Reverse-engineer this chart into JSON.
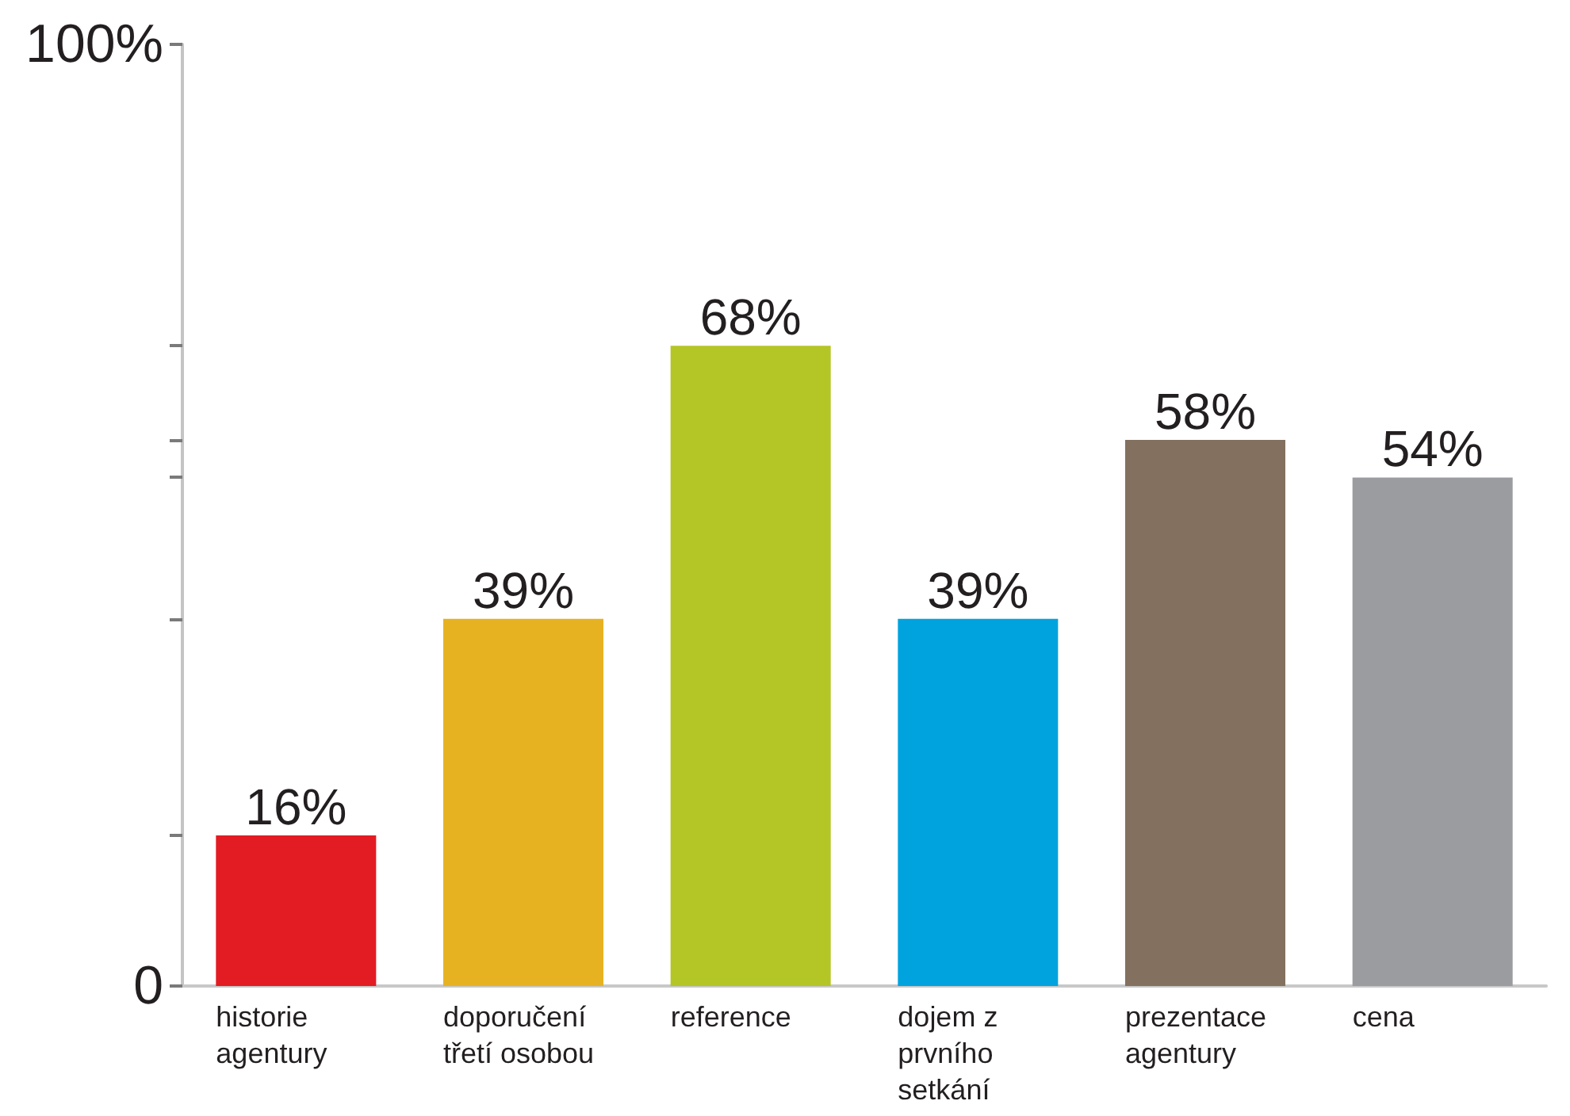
{
  "chart_data": {
    "type": "bar",
    "categories": [
      "historie agentury",
      "doporučení třetí osobou",
      "reference",
      "dojem z prvního setkání",
      "prezentace agentury",
      "cena"
    ],
    "values": [
      16,
      39,
      68,
      39,
      58,
      54
    ],
    "colors": [
      "#e31b23",
      "#e6b222",
      "#b4c526",
      "#00a3de",
      "#83705f",
      "#9a9c9f"
    ],
    "value_labels": [
      "16%",
      "39%",
      "68%",
      "39%",
      "58%",
      "54%"
    ],
    "ylim": [
      0,
      100
    ],
    "yticks": [
      0,
      {
        "value": 16,
        "label": null
      },
      {
        "value": 39,
        "label": null
      },
      {
        "value": 54,
        "label": null
      },
      {
        "value": 58,
        "label": null
      },
      {
        "value": 68,
        "label": null
      },
      {
        "value": 100,
        "label": "100%"
      }
    ]
  }
}
